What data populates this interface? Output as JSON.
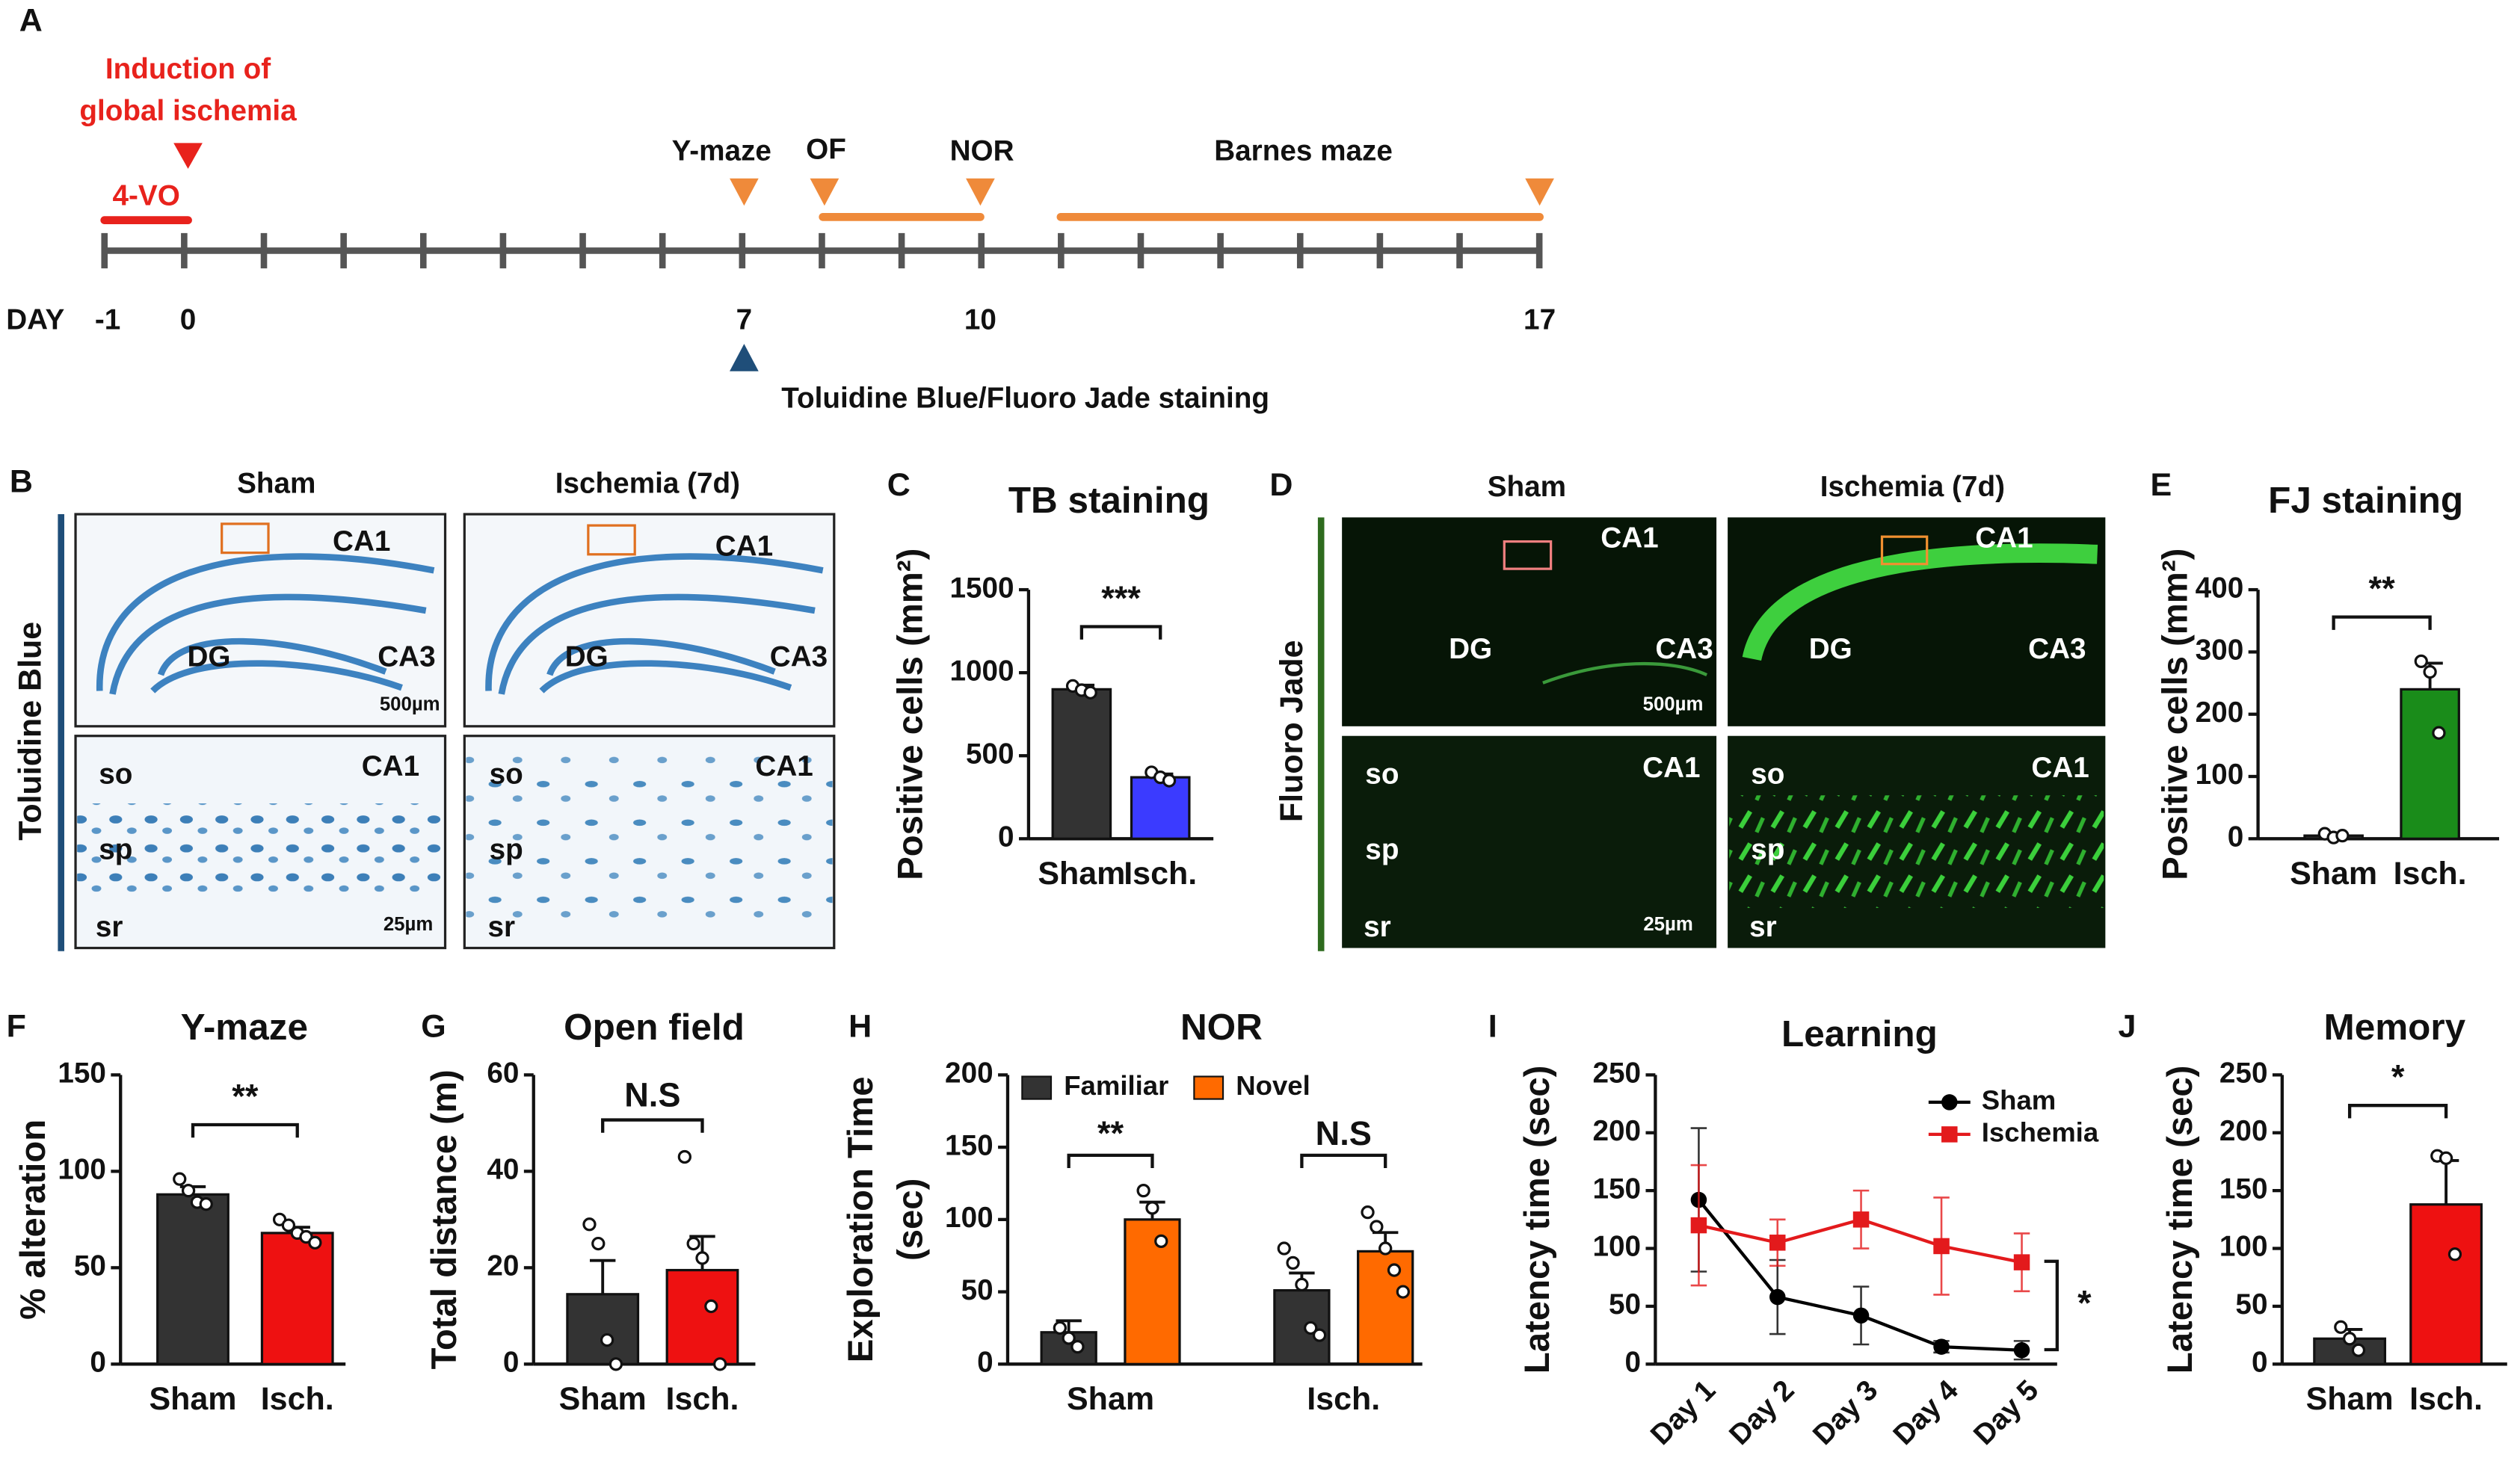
{
  "panel_letters": [
    "A",
    "B",
    "C",
    "D",
    "E",
    "F",
    "G",
    "H",
    "I",
    "J"
  ],
  "timeline": {
    "induction": [
      "Induction of",
      "global ischemia"
    ],
    "occlusion": "4-VO",
    "tests": [
      "Y-maze",
      "OF",
      "NOR",
      "Barnes maze"
    ],
    "day_label": "DAY",
    "days": [
      "-1",
      "0",
      "7",
      "10",
      "17"
    ],
    "staining": "Toluidine Blue/Fluoro Jade staining"
  },
  "micrographs": {
    "columns": [
      "Sham",
      "Ischemia (7d)"
    ],
    "stains": [
      "Toluidine Blue",
      "Fluoro Jade"
    ],
    "regions": [
      "CA1",
      "CA3",
      "DG"
    ],
    "layers": [
      "so",
      "sp",
      "sr"
    ],
    "scale_bars": [
      "500µm",
      "25µm"
    ]
  },
  "chart_data": [
    {
      "type": "bar",
      "title": "TB staining",
      "ylabel": "Positive cells (mm²)",
      "categories": [
        "Sham",
        "Isch."
      ],
      "values": [
        900,
        370
      ],
      "errors": [
        25,
        20
      ],
      "points": [
        [
          920,
          895,
          880
        ],
        [
          400,
          370,
          350
        ]
      ],
      "colors": [
        "#333333",
        "#3b3bff"
      ],
      "ylim": [
        0,
        1500
      ],
      "yticks": [
        0,
        500,
        1000,
        1500
      ],
      "significance": "***"
    },
    {
      "type": "bar",
      "title": "FJ staining",
      "ylabel": "Positive cells (mm²)",
      "categories": [
        "Sham",
        "Isch."
      ],
      "values": [
        5,
        240
      ],
      "errors": [
        3,
        42
      ],
      "points": [
        [
          8,
          2,
          5
        ],
        [
          285,
          268,
          170
        ]
      ],
      "colors": [
        "#333333",
        "#1a8c1a"
      ],
      "ylim": [
        0,
        400
      ],
      "yticks": [
        0,
        100,
        200,
        300,
        400
      ],
      "significance": "**"
    },
    {
      "type": "bar",
      "title": "Y-maze",
      "ylabel": "% alteration",
      "categories": [
        "Sham",
        "Isch."
      ],
      "values": [
        88,
        68
      ],
      "errors": [
        4,
        3
      ],
      "points": [
        [
          96,
          90,
          84,
          83
        ],
        [
          75,
          72,
          68,
          66,
          63
        ]
      ],
      "colors": [
        "#333333",
        "#ee1111"
      ],
      "ylim": [
        0,
        150
      ],
      "yticks": [
        0,
        50,
        100,
        150
      ],
      "significance": "**"
    },
    {
      "type": "bar",
      "title": "Open field",
      "ylabel": "Total distance (m)",
      "categories": [
        "Sham",
        "Isch."
      ],
      "values": [
        14.5,
        19.5
      ],
      "errors": [
        7,
        7
      ],
      "points": [
        [
          29,
          25,
          5,
          0
        ],
        [
          43,
          25,
          22,
          12,
          0
        ]
      ],
      "colors": [
        "#333333",
        "#ee1111"
      ],
      "ylim": [
        0,
        60
      ],
      "yticks": [
        0,
        20,
        40,
        60
      ],
      "significance": "N.S"
    },
    {
      "type": "bar",
      "title": "NOR",
      "ylabel": [
        "Exploration Time",
        "(sec)"
      ],
      "categories": [
        "Sham",
        "Isch."
      ],
      "series": [
        {
          "name": "Familiar",
          "color": "#333333",
          "values": [
            22,
            51
          ],
          "errors": [
            8,
            12
          ],
          "points": [
            [
              25,
              18,
              12
            ],
            [
              80,
              70,
              55,
              25,
              20
            ]
          ]
        },
        {
          "name": "Novel",
          "color": "#ff6a00",
          "values": [
            100,
            78
          ],
          "errors": [
            12,
            13
          ],
          "points": [
            [
              120,
              108,
              85
            ],
            [
              105,
              95,
              80,
              65,
              50
            ]
          ]
        }
      ],
      "ylim": [
        0,
        200
      ],
      "yticks": [
        0,
        50,
        100,
        150,
        200
      ],
      "significance": [
        "**",
        "N.S"
      ]
    },
    {
      "type": "line",
      "title": "Learning",
      "ylabel": "Latency time (sec)",
      "categories": [
        "Day 1",
        "Day 2",
        "Day 3",
        "Day 4",
        "Day 5"
      ],
      "series": [
        {
          "name": "Sham",
          "color": "#000000",
          "marker": "circle",
          "values": [
            142,
            58,
            42,
            15,
            12
          ],
          "errors": [
            62,
            32,
            25,
            5,
            8
          ]
        },
        {
          "name": "Ischemia",
          "color": "#e31a1c",
          "marker": "square",
          "values": [
            120,
            105,
            125,
            102,
            88
          ],
          "errors": [
            52,
            20,
            25,
            42,
            25
          ]
        }
      ],
      "ylim": [
        0,
        250
      ],
      "yticks": [
        0,
        50,
        100,
        150,
        200,
        250
      ],
      "significance": "*"
    },
    {
      "type": "bar",
      "title": "Memory",
      "ylabel": "Latency time (sec)",
      "categories": [
        "Sham",
        "Isch."
      ],
      "values": [
        22,
        138
      ],
      "errors": [
        8,
        38
      ],
      "points": [
        [
          32,
          22,
          12
        ],
        [
          180,
          178,
          95
        ]
      ],
      "colors": [
        "#333333",
        "#ee1111"
      ],
      "ylim": [
        0,
        250
      ],
      "yticks": [
        0,
        50,
        100,
        150,
        200,
        250
      ],
      "significance": "*"
    }
  ]
}
